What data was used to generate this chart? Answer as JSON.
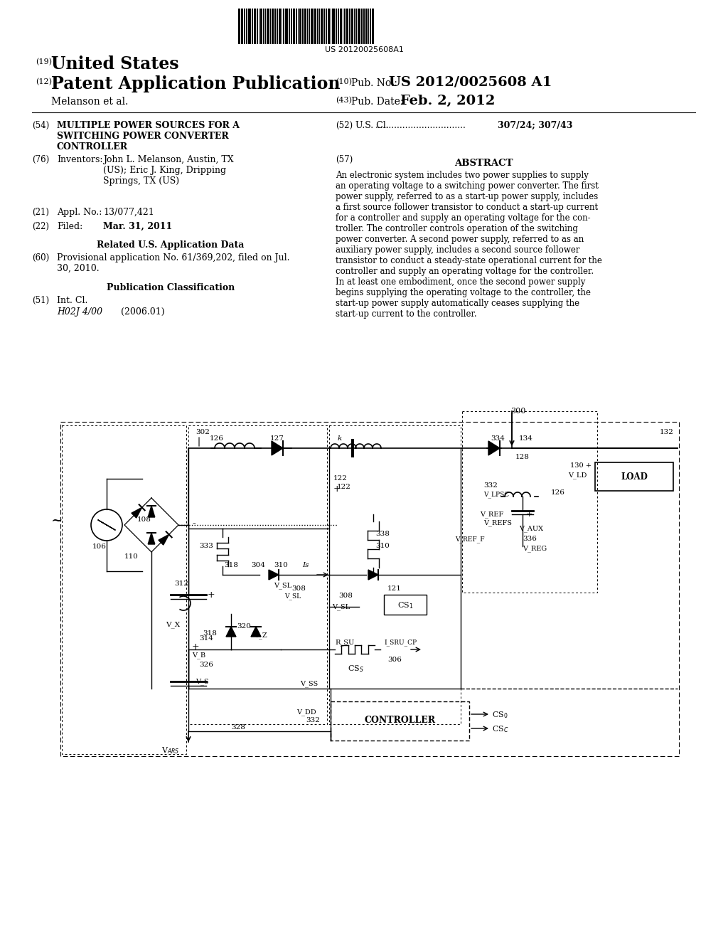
{
  "barcode_text": "US 20120025608A1",
  "title_19_text": "United States",
  "title_12_text": "Patent Application Publication",
  "pub_no_label": "Pub. No.:",
  "pub_no": "US 2012/0025608 A1",
  "authors": "Melanson et al.",
  "pub_date_label": "Pub. Date:",
  "pub_date": "Feb. 2, 2012",
  "invention_title": "MULTIPLE POWER SOURCES FOR A\nSWITCHING POWER CONVERTER\nCONTROLLER",
  "us_cl_label": "U.S. Cl.",
  "us_cl_dots": ".................................",
  "us_cl_value": "307/24; 307/43",
  "inventors_label": "Inventors:",
  "inventors_text": "John L. Melanson, Austin, TX\n(US); Eric J. King, Dripping\nSprings, TX (US)",
  "abstract_title": "ABSTRACT",
  "abstract_text": "An electronic system includes two power supplies to supply\nan operating voltage to a switching power converter. The first\npower supply, referred to as a start-up power supply, includes\na first source follower transistor to conduct a start-up current\nfor a controller and supply an operating voltage for the con-\ntroller. The controller controls operation of the switching\npower converter. A second power supply, referred to as an\nauxiliary power supply, includes a second source follower\ntransistor to conduct a steady-state operational current for the\ncontroller and supply an operating voltage for the controller.\nIn at least one embodiment, once the second power supply\nbegins supplying the operating voltage to the controller, the\nstart-up power supply automatically ceases supplying the\nstart-up current to the controller.",
  "appl_no": "13/077,421",
  "filed_date": "Mar. 31, 2011",
  "related_title": "Related U.S. Application Data",
  "related_text": "Provisional application No. 61/369,202, filed on Jul.\n30, 2010.",
  "pub_class_title": "Publication Classification",
  "int_cl_value": "H02J 4/00",
  "int_cl_date": "(2006.01)",
  "bg_color": "#ffffff"
}
